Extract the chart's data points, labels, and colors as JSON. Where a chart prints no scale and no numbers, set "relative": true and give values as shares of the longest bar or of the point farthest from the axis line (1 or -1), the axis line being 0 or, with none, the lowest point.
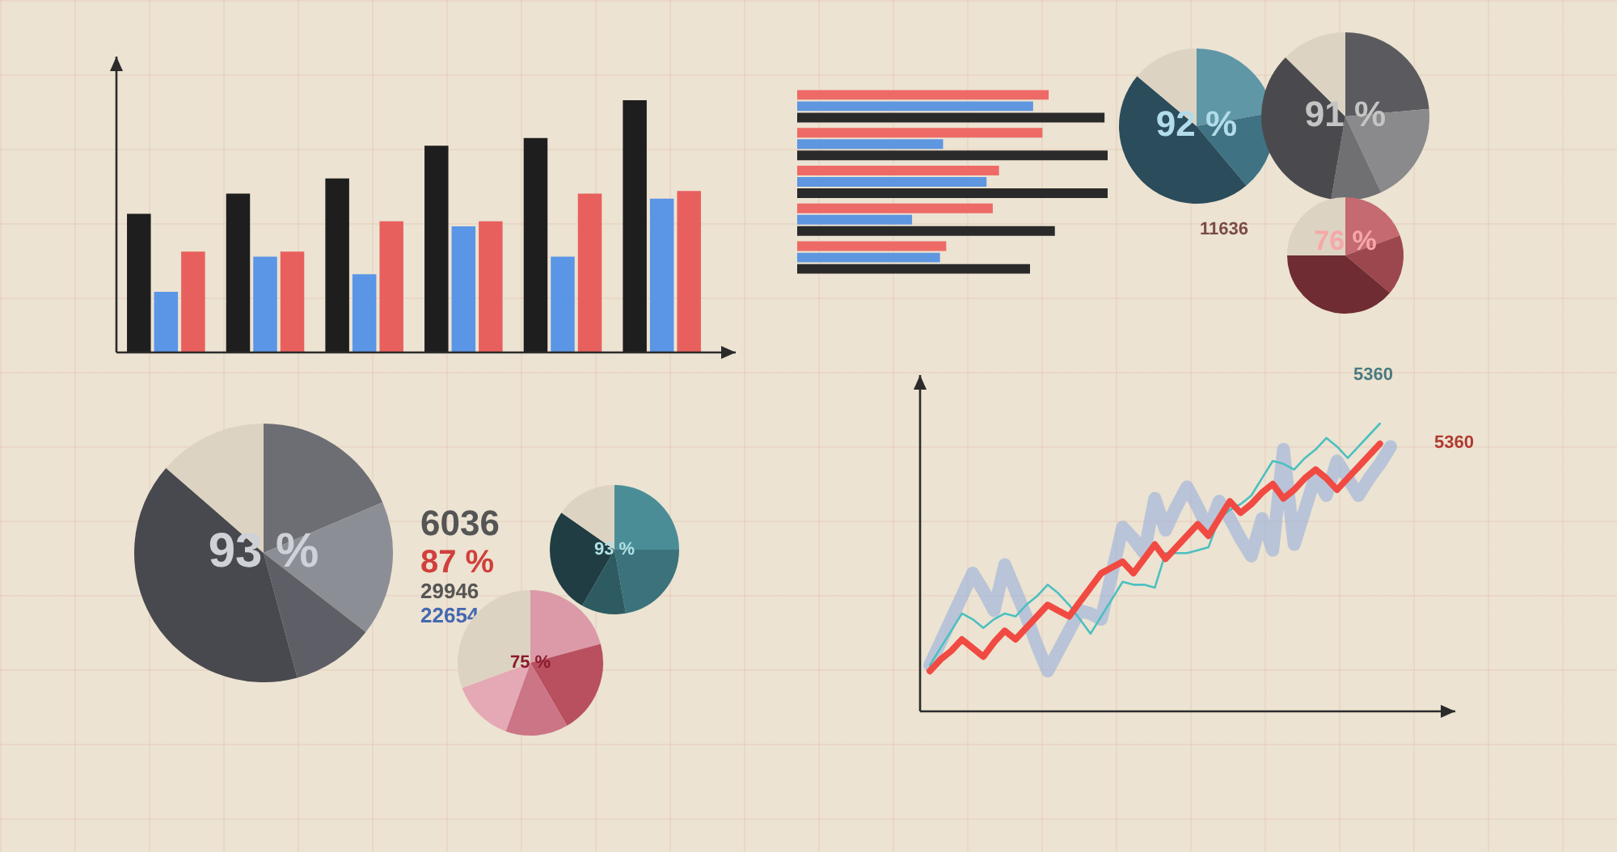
{
  "chart_data": [
    {
      "type": "bar",
      "relative": true,
      "tick_labels": false,
      "categories": [
        null,
        null,
        null,
        null,
        null,
        null
      ],
      "series": [
        {
          "color": "#1e1e1e",
          "values": [
            0.55,
            0.63,
            0.69,
            0.82,
            0.85,
            1
          ]
        },
        {
          "color": "#5b95e6",
          "values": [
            0.24,
            0.38,
            0.31,
            0.5,
            0.38,
            0.61
          ]
        },
        {
          "color": "#e8605e",
          "values": [
            0.4,
            0.4,
            0.52,
            0.52,
            0.63,
            0.64
          ]
        }
      ]
    },
    {
      "type": "bar",
      "orientation": "horizontal",
      "relative": true,
      "tick_labels": false,
      "categories": [
        null,
        null,
        null,
        null,
        null
      ],
      "series": [
        {
          "color": "#ee6a66",
          "values": [
            0.81,
            0.79,
            0.65,
            0.63,
            0.48
          ]
        },
        {
          "color": "#5f96e0",
          "values": [
            0.76,
            0.47,
            0.61,
            0.37,
            0.46
          ]
        },
        {
          "color": "#2a2a2a",
          "values": [
            0.99,
            1,
            1,
            0.83,
            0.75
          ]
        }
      ]
    },
    {
      "type": "pie",
      "categories": [
        null,
        null,
        null,
        null
      ],
      "values": [
        22.2,
        16.7,
        47.2,
        13.9
      ],
      "colors": [
        "#5f97a6",
        "#3f7283",
        "#2b4c5a",
        "#ddd3c2"
      ],
      "annotations": [
        "92 %"
      ]
    },
    {
      "type": "pie",
      "categories": [
        null,
        null,
        null,
        null,
        null
      ],
      "values": [
        23.6,
        19.4,
        9.7,
        34.7,
        12.6
      ],
      "colors": [
        "#5b5b5f",
        "#8a8a8d",
        "#707073",
        "#4a4a4e",
        "#ddd3c2"
      ],
      "annotations": [
        "91 %"
      ]
    },
    {
      "type": "pie",
      "categories": [
        null,
        null,
        null,
        null
      ],
      "values": [
        19.4,
        16.7,
        38.9,
        25
      ],
      "colors": [
        "#c46a70",
        "#9c474d",
        "#6f2c32",
        "#ddd3c2"
      ],
      "annotations": [
        "76 %"
      ]
    },
    {
      "type": "other",
      "annotations": [
        "11636"
      ]
    },
    {
      "type": "pie",
      "categories": [
        null,
        null,
        null,
        null,
        null
      ],
      "values": [
        18.6,
        16.9,
        10.3,
        40.6,
        13.6
      ],
      "colors": [
        "#6d6e74",
        "#8c8e96",
        "#5e5f66",
        "#48494f",
        "#ddd3c2"
      ],
      "annotations": [
        "93 %"
      ]
    },
    {
      "type": "other",
      "annotations": [
        "6036",
        "87 %",
        "29946",
        "22654"
      ]
    },
    {
      "type": "pie",
      "categories": [
        null,
        null,
        null,
        null,
        null
      ],
      "values": [
        25,
        22.2,
        11.1,
        26.4,
        15.3
      ],
      "colors": [
        "#4a8d96",
        "#3b727b",
        "#2e5b62",
        "#1f3d42",
        "#ddd3c2"
      ],
      "annotations": [
        "93 %"
      ]
    },
    {
      "type": "pie",
      "categories": [
        null,
        null,
        null,
        null,
        null
      ],
      "values": [
        20.8,
        20.8,
        13.9,
        13.9,
        30.6
      ],
      "colors": [
        "#dc9aa8",
        "#b9505f",
        "#cc7587",
        "#e4a9b5",
        "#ddd3c2"
      ],
      "annotations": [
        "75 %"
      ]
    },
    {
      "type": "line",
      "relative": true,
      "tick_labels": false,
      "annotations": [
        "5360",
        "5360"
      ],
      "categories": [
        null,
        null,
        null,
        null,
        null,
        null,
        null,
        null,
        null,
        null,
        null,
        null,
        null,
        null,
        null,
        null,
        null,
        null,
        null,
        null,
        null,
        null,
        null,
        null,
        null,
        null,
        null,
        null,
        null,
        null,
        null,
        null,
        null,
        null,
        null,
        null,
        null,
        null,
        null,
        null,
        null,
        null,
        null,
        null
      ],
      "series": [
        {
          "color": "#f04a42",
          "values": [
            0.14,
            0.18,
            0.21,
            0.25,
            0.22,
            0.19,
            0.24,
            0.28,
            0.25,
            0.29,
            0.33,
            0.37,
            0.35,
            0.33,
            0.38,
            0.43,
            0.48,
            0.5,
            0.52,
            0.48,
            0.53,
            0.58,
            0.53,
            0.57,
            0.61,
            0.65,
            0.61,
            0.67,
            0.73,
            0.69,
            0.72,
            0.76,
            0.79,
            0.74,
            0.77,
            0.81,
            0.84,
            0.81,
            0.77,
            0.81,
            0.85,
            0.89,
            0.93,
            null
          ]
        },
        {
          "color": "#4cc0c0",
          "values": [
            0.16,
            0.22,
            0.28,
            0.34,
            0.32,
            0.29,
            0.32,
            0.34,
            0.33,
            0.37,
            0.4,
            0.44,
            0.41,
            0.37,
            0.32,
            0.27,
            0.33,
            0.39,
            0.45,
            0.44,
            0.44,
            0.43,
            0.55,
            0.55,
            0.55,
            0.56,
            0.57,
            0.67,
            0.7,
            0.72,
            0.75,
            0.81,
            0.87,
            0.86,
            0.84,
            0.88,
            0.91,
            0.95,
            0.92,
            0.88,
            0.92,
            0.96,
            1,
            null
          ]
        },
        {
          "color": "#8fabdc",
          "values": [
            0.16,
            0.24,
            0.32,
            0.4,
            0.48,
            0.42,
            0.35,
            0.51,
            0.42,
            0.33,
            0.23,
            0.14,
            0.21,
            0.28,
            0.35,
            0.34,
            0.32,
            0.48,
            0.64,
            0.6,
            0.55,
            0.74,
            0.63,
            0.71,
            0.78,
            0.71,
            0.63,
            0.73,
            0.67,
            0.6,
            0.54,
            0.67,
            0.56,
            0.91,
            0.58,
            0.7,
            0.82,
            0.75,
            0.87,
            0.81,
            0.75,
            0.81,
            0.86,
            0.92
          ]
        }
      ]
    }
  ]
}
